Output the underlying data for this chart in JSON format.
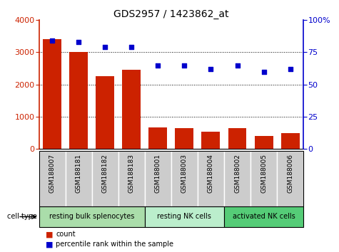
{
  "title": "GDS2957 / 1423862_at",
  "samples": [
    "GSM188007",
    "GSM188181",
    "GSM188182",
    "GSM188183",
    "GSM188001",
    "GSM188003",
    "GSM188004",
    "GSM188002",
    "GSM188005",
    "GSM188006"
  ],
  "counts": [
    3400,
    3000,
    2250,
    2450,
    670,
    640,
    530,
    640,
    400,
    490
  ],
  "percentiles": [
    84,
    83,
    79,
    79,
    65,
    65,
    62,
    65,
    60,
    62
  ],
  "bar_color": "#cc2200",
  "dot_color": "#0000cc",
  "ylim_left": [
    0,
    4000
  ],
  "ylim_right": [
    0,
    100
  ],
  "yticks_left": [
    0,
    1000,
    2000,
    3000,
    4000
  ],
  "yticks_right": [
    0,
    25,
    50,
    75,
    100
  ],
  "cell_groups": [
    {
      "label": "resting bulk splenocytes",
      "start": 0,
      "end": 4,
      "color": "#aaddaa"
    },
    {
      "label": "resting NK cells",
      "start": 4,
      "end": 7,
      "color": "#bbeecc"
    },
    {
      "label": "activated NK cells",
      "start": 7,
      "end": 10,
      "color": "#55cc77"
    }
  ],
  "cell_type_label": "cell type",
  "legend_count_label": "count",
  "legend_percentile_label": "percentile rank within the sample",
  "tick_bg_color": "#cccccc",
  "title_fontsize": 10,
  "tick_fontsize": 8,
  "label_fontsize": 7.5
}
